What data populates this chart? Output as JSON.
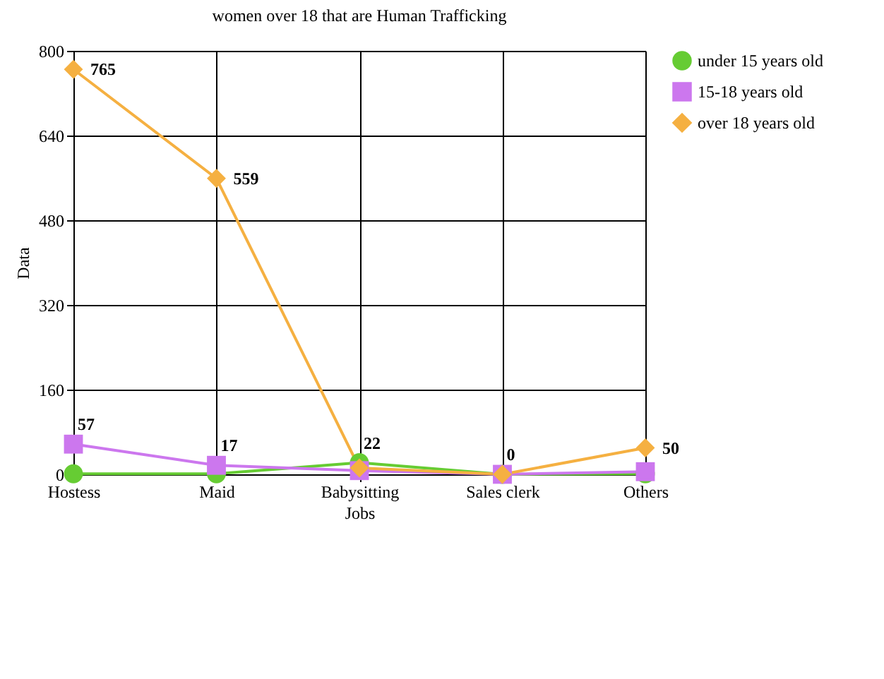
{
  "chart_data": {
    "type": "line",
    "title": "women over 18 that are Human Trafficking",
    "xlabel": "Jobs",
    "ylabel": "Data",
    "categories": [
      "Hostess",
      "Maid",
      "Babysitting",
      "Sales clerk",
      "Others"
    ],
    "series": [
      {
        "name": "under 15 years old",
        "color": "#66cc33",
        "marker": "circle",
        "values": [
          1,
          1,
          22,
          0,
          1
        ],
        "value_labels": [
          null,
          null,
          "22",
          null,
          null
        ]
      },
      {
        "name": "15-18 years old",
        "color": "#cc77ee",
        "marker": "square",
        "values": [
          57,
          17,
          7,
          0,
          5
        ],
        "value_labels": [
          "57",
          "17",
          null,
          "0",
          null
        ]
      },
      {
        "name": "over 18 years old",
        "color": "#f5b041",
        "marker": "diamond",
        "values": [
          765,
          559,
          12,
          0,
          50
        ],
        "value_labels": [
          "765",
          "559",
          null,
          null,
          "50"
        ]
      }
    ],
    "ylim": [
      0,
      800
    ],
    "yticks": [
      0,
      160,
      320,
      480,
      640,
      800
    ],
    "grid": true,
    "legend": "right"
  }
}
